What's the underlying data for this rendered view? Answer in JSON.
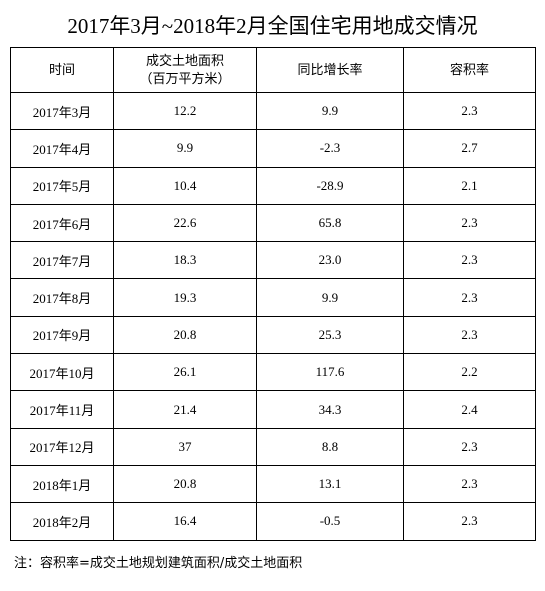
{
  "title": "2017年3月~2018年2月全国住宅用地成交情况",
  "table": {
    "header": [
      "时间",
      [
        "成交土地面积",
        "（百万平方米）"
      ],
      "同比增长率",
      "容积率"
    ],
    "rows": [
      [
        "2017年3月",
        "12.2",
        "9.9",
        "2.3"
      ],
      [
        "2017年4月",
        "9.9",
        "-2.3",
        "2.7"
      ],
      [
        "2017年5月",
        "10.4",
        "-28.9",
        "2.1"
      ],
      [
        "2017年6月",
        "22.6",
        "65.8",
        "2.3"
      ],
      [
        "2017年7月",
        "18.3",
        "23.0",
        "2.3"
      ],
      [
        "2017年8月",
        "19.3",
        "9.9",
        "2.3"
      ],
      [
        "2017年9月",
        "20.8",
        "25.3",
        "2.3"
      ],
      [
        "2017年10月",
        "26.1",
        "117.6",
        "2.2"
      ],
      [
        "2017年11月",
        "21.4",
        "34.3",
        "2.4"
      ],
      [
        "2017年12月",
        "37",
        "8.8",
        "2.3"
      ],
      [
        "2018年1月",
        "20.8",
        "13.1",
        "2.3"
      ],
      [
        "2018年2月",
        "16.4",
        "-0.5",
        "2.3"
      ]
    ]
  },
  "note": "注：容积率=成交土地规划建筑面积/成交土地面积"
}
